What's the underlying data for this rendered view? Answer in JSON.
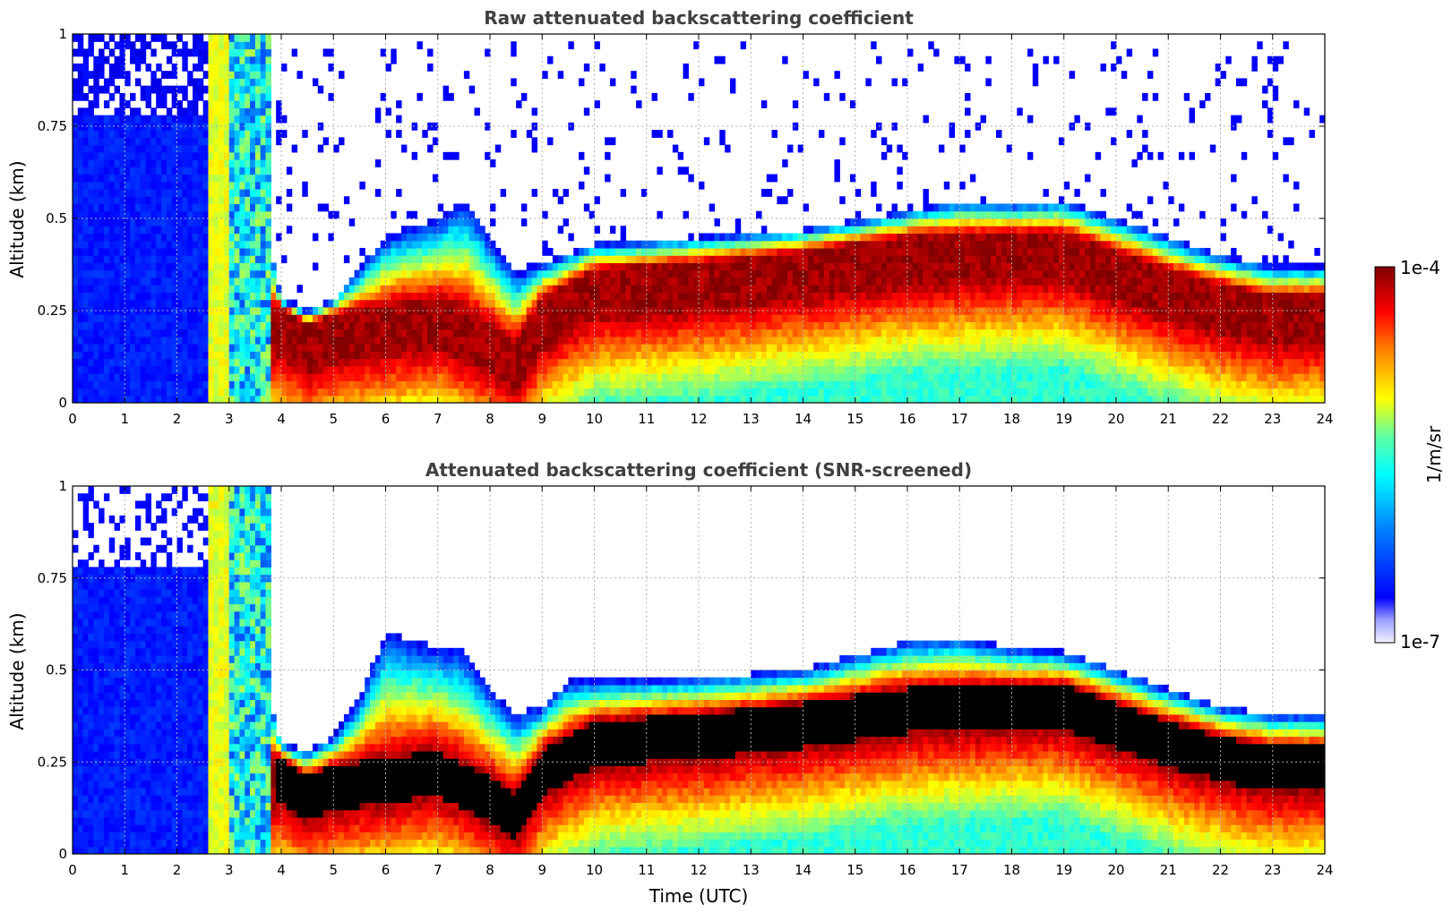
{
  "chart_data": [
    {
      "type": "heatmap",
      "title": "Raw attenuated backscattering coefficient",
      "ylabel": "Altitude (km)",
      "xlabel": "",
      "xlim": [
        0,
        24
      ],
      "ylim": [
        0,
        1
      ],
      "x_ticks": [
        "0",
        "1",
        "2",
        "3",
        "4",
        "5",
        "6",
        "7",
        "8",
        "9",
        "10",
        "11",
        "12",
        "13",
        "14",
        "15",
        "16",
        "17",
        "18",
        "19",
        "20",
        "21",
        "22",
        "23",
        "24"
      ],
      "y_ticks": [
        "0",
        "0.25",
        "0.5",
        "0.75",
        "1"
      ],
      "grid": true,
      "layer_top_km": [
        [
          3.8,
          0.42
        ],
        [
          4,
          0.28
        ],
        [
          4.5,
          0.25
        ],
        [
          5,
          0.28
        ],
        [
          6,
          0.45
        ],
        [
          7,
          0.5
        ],
        [
          7.5,
          0.55
        ],
        [
          8,
          0.45
        ],
        [
          8.5,
          0.35
        ],
        [
          9,
          0.38
        ],
        [
          10,
          0.43
        ],
        [
          12,
          0.45
        ],
        [
          14,
          0.47
        ],
        [
          16,
          0.52
        ],
        [
          17,
          0.55
        ],
        [
          18,
          0.54
        ],
        [
          19,
          0.55
        ],
        [
          20,
          0.5
        ],
        [
          21,
          0.45
        ],
        [
          22,
          0.4
        ],
        [
          23,
          0.37
        ],
        [
          24,
          0.37
        ]
      ],
      "layer_peak_km": [
        [
          4,
          0.2
        ],
        [
          4.5,
          0.15
        ],
        [
          5,
          0.18
        ],
        [
          6,
          0.2
        ],
        [
          7,
          0.22
        ],
        [
          8,
          0.15
        ],
        [
          8.5,
          0.1
        ],
        [
          9,
          0.22
        ],
        [
          10,
          0.3
        ],
        [
          12,
          0.32
        ],
        [
          14,
          0.35
        ],
        [
          16,
          0.39
        ],
        [
          18,
          0.4
        ],
        [
          19,
          0.4
        ],
        [
          20,
          0.35
        ],
        [
          21,
          0.3
        ],
        [
          22,
          0.26
        ],
        [
          23,
          0.23
        ],
        [
          24,
          0.23
        ]
      ],
      "screened": false
    },
    {
      "type": "heatmap",
      "title": "Attenuated backscattering coefficient (SNR-screened)",
      "ylabel": "Altitude (km)",
      "xlabel": "Time (UTC)",
      "xlim": [
        0,
        24
      ],
      "ylim": [
        0,
        1
      ],
      "x_ticks": [
        "0",
        "1",
        "2",
        "3",
        "4",
        "5",
        "6",
        "7",
        "8",
        "9",
        "10",
        "11",
        "12",
        "13",
        "14",
        "15",
        "16",
        "17",
        "18",
        "19",
        "20",
        "21",
        "22",
        "23",
        "24"
      ],
      "y_ticks": [
        "0",
        "0.25",
        "0.5",
        "0.75",
        "1"
      ],
      "grid": true,
      "layer_top_km": [
        [
          3.8,
          0.42
        ],
        [
          4,
          0.3
        ],
        [
          4.5,
          0.28
        ],
        [
          5,
          0.32
        ],
        [
          5.5,
          0.42
        ],
        [
          6,
          0.6
        ],
        [
          6.5,
          0.58
        ],
        [
          7,
          0.56
        ],
        [
          7.5,
          0.55
        ],
        [
          8,
          0.45
        ],
        [
          8.5,
          0.38
        ],
        [
          9,
          0.4
        ],
        [
          9.5,
          0.47
        ],
        [
          12,
          0.48
        ],
        [
          14,
          0.5
        ],
        [
          16,
          0.58
        ],
        [
          17,
          0.59
        ],
        [
          18,
          0.56
        ],
        [
          19,
          0.55
        ],
        [
          20,
          0.5
        ],
        [
          21,
          0.45
        ],
        [
          22,
          0.4
        ],
        [
          23,
          0.38
        ],
        [
          24,
          0.38
        ]
      ],
      "layer_peak_km": [
        [
          4,
          0.2
        ],
        [
          4.5,
          0.15
        ],
        [
          5,
          0.18
        ],
        [
          6,
          0.2
        ],
        [
          7,
          0.22
        ],
        [
          8,
          0.15
        ],
        [
          8.5,
          0.1
        ],
        [
          9,
          0.22
        ],
        [
          10,
          0.3
        ],
        [
          12,
          0.32
        ],
        [
          14,
          0.35
        ],
        [
          16,
          0.39
        ],
        [
          18,
          0.4
        ],
        [
          19,
          0.4
        ],
        [
          20,
          0.35
        ],
        [
          21,
          0.3
        ],
        [
          22,
          0.26
        ],
        [
          23,
          0.23
        ],
        [
          24,
          0.23
        ]
      ],
      "screened": true
    }
  ],
  "colorbar": {
    "label": "1/m/sr",
    "max_label": "1e-4",
    "min_label": "1e-7",
    "colormap": "jet",
    "scale": "log"
  }
}
